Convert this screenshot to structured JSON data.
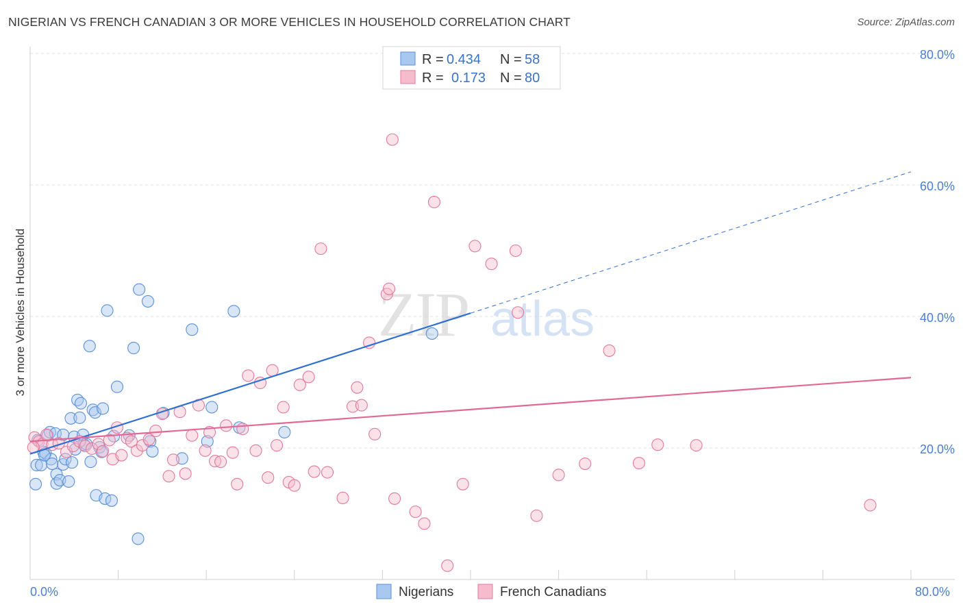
{
  "title": "NIGERIAN VS FRENCH CANADIAN 3 OR MORE VEHICLES IN HOUSEHOLD CORRELATION CHART",
  "source": "Source: ZipAtlas.com",
  "watermark": {
    "zip": "ZIP",
    "atlas": "atlas"
  },
  "chart_data": {
    "type": "scatter",
    "xlabel": "",
    "ylabel": "3 or more Vehicles in Household",
    "xlim": [
      0,
      80
    ],
    "ylim": [
      0,
      80
    ],
    "x_tick_labels": [
      "0.0%",
      "80.0%"
    ],
    "y_tick_labels": [
      "20.0%",
      "40.0%",
      "60.0%",
      "80.0%"
    ],
    "y_ticks": [
      20,
      40,
      60,
      80
    ],
    "grid": true,
    "legend_top": [
      {
        "r_label": "R =",
        "r_value": "0.434",
        "n_label": "N =",
        "n_value": "58",
        "color": "#a9c8f0",
        "stroke": "#5b8fd6"
      },
      {
        "r_label": "R =",
        "r_value": "0.173",
        "n_label": "N =",
        "n_value": "80",
        "color": "#f6bccd",
        "stroke": "#e07a9c"
      }
    ],
    "series": [
      {
        "name": "Nigerians",
        "color": "#a9c8f0",
        "stroke": "#5b8fd6",
        "line_color": "#2f6fd0",
        "trend": {
          "x0": 0,
          "y0": 19.1,
          "x1": 40,
          "y1": 40.5,
          "dash_to_x": 80,
          "dash_to_y": 62.0
        },
        "points": [
          [
            0.5,
            14.5
          ],
          [
            0.6,
            17.4
          ],
          [
            0.7,
            21.2
          ],
          [
            1.0,
            17.4
          ],
          [
            1.2,
            19.4
          ],
          [
            1.4,
            19.2
          ],
          [
            1.6,
            21.9
          ],
          [
            1.8,
            22.4
          ],
          [
            1.9,
            18.3
          ],
          [
            2.0,
            17.6
          ],
          [
            2.3,
            22.2
          ],
          [
            2.4,
            16.0
          ],
          [
            2.4,
            14.6
          ],
          [
            2.7,
            15.1
          ],
          [
            3.0,
            17.5
          ],
          [
            3.0,
            22.0
          ],
          [
            3.2,
            18.3
          ],
          [
            3.5,
            14.9
          ],
          [
            3.7,
            24.5
          ],
          [
            3.8,
            17.8
          ],
          [
            4.0,
            21.7
          ],
          [
            4.1,
            19.8
          ],
          [
            4.3,
            27.3
          ],
          [
            4.5,
            24.6
          ],
          [
            4.6,
            26.8
          ],
          [
            4.8,
            22.0
          ],
          [
            4.9,
            20.5
          ],
          [
            5.1,
            20.6
          ],
          [
            5.4,
            35.5
          ],
          [
            5.5,
            17.9
          ],
          [
            5.7,
            25.8
          ],
          [
            5.9,
            25.4
          ],
          [
            6.0,
            12.8
          ],
          [
            6.3,
            20.1
          ],
          [
            6.5,
            19.4
          ],
          [
            6.6,
            26.0
          ],
          [
            6.8,
            12.3
          ],
          [
            7.0,
            40.9
          ],
          [
            7.4,
            12.0
          ],
          [
            7.6,
            21.8
          ],
          [
            7.9,
            29.3
          ],
          [
            9.0,
            21.9
          ],
          [
            9.4,
            35.2
          ],
          [
            9.8,
            6.2
          ],
          [
            9.9,
            44.1
          ],
          [
            10.7,
            42.3
          ],
          [
            10.9,
            21.0
          ],
          [
            11.1,
            19.5
          ],
          [
            12.1,
            25.3
          ],
          [
            13.8,
            18.4
          ],
          [
            14.7,
            38.0
          ],
          [
            16.1,
            21.0
          ],
          [
            16.5,
            26.2
          ],
          [
            18.5,
            40.8
          ],
          [
            19.0,
            23.1
          ],
          [
            23.1,
            22.4
          ],
          [
            36.5,
            37.4
          ],
          [
            1.3,
            18.9
          ]
        ]
      },
      {
        "name": "French Canadians",
        "color": "#f6bccd",
        "stroke": "#e07a9c",
        "line_color": "#e06a95",
        "trend": {
          "x0": 0,
          "y0": 21.0,
          "x1": 80,
          "y1": 30.7
        },
        "points": [
          [
            0.4,
            21.6
          ],
          [
            0.8,
            21.0
          ],
          [
            1.1,
            20.6
          ],
          [
            1.5,
            22.0
          ],
          [
            2.0,
            20.5
          ],
          [
            2.6,
            20.7
          ],
          [
            3.3,
            19.4
          ],
          [
            3.9,
            20.3
          ],
          [
            4.5,
            21.0
          ],
          [
            5.0,
            20.3
          ],
          [
            5.6,
            19.9
          ],
          [
            6.2,
            20.6
          ],
          [
            6.6,
            19.5
          ],
          [
            7.2,
            21.2
          ],
          [
            7.5,
            18.3
          ],
          [
            7.9,
            23.1
          ],
          [
            8.3,
            18.9
          ],
          [
            8.8,
            21.5
          ],
          [
            9.2,
            21.0
          ],
          [
            9.7,
            19.6
          ],
          [
            10.2,
            20.4
          ],
          [
            10.8,
            21.3
          ],
          [
            11.4,
            22.6
          ],
          [
            12.0,
            25.2
          ],
          [
            12.6,
            15.7
          ],
          [
            13.0,
            18.2
          ],
          [
            13.6,
            25.5
          ],
          [
            14.1,
            16.1
          ],
          [
            14.7,
            21.9
          ],
          [
            15.3,
            26.5
          ],
          [
            15.9,
            19.6
          ],
          [
            16.3,
            22.4
          ],
          [
            16.8,
            18.0
          ],
          [
            17.3,
            17.9
          ],
          [
            17.8,
            23.4
          ],
          [
            18.4,
            19.3
          ],
          [
            18.8,
            14.5
          ],
          [
            19.3,
            22.9
          ],
          [
            19.8,
            31.0
          ],
          [
            20.5,
            19.6
          ],
          [
            20.9,
            29.9
          ],
          [
            21.6,
            15.5
          ],
          [
            22.0,
            31.8
          ],
          [
            22.4,
            20.4
          ],
          [
            23.0,
            26.2
          ],
          [
            23.5,
            14.8
          ],
          [
            24.0,
            14.3
          ],
          [
            24.5,
            29.6
          ],
          [
            25.3,
            30.8
          ],
          [
            25.8,
            16.4
          ],
          [
            26.4,
            50.3
          ],
          [
            27.0,
            16.3
          ],
          [
            28.4,
            12.4
          ],
          [
            29.3,
            26.3
          ],
          [
            29.7,
            29.2
          ],
          [
            30.1,
            26.5
          ],
          [
            30.8,
            36.0
          ],
          [
            31.3,
            22.1
          ],
          [
            32.4,
            43.4
          ],
          [
            32.6,
            44.2
          ],
          [
            32.9,
            66.9
          ],
          [
            33.1,
            12.3
          ],
          [
            35.0,
            10.3
          ],
          [
            35.8,
            8.5
          ],
          [
            36.7,
            57.4
          ],
          [
            37.9,
            2.1
          ],
          [
            39.3,
            14.5
          ],
          [
            40.4,
            50.7
          ],
          [
            41.9,
            48.0
          ],
          [
            44.1,
            50.0
          ],
          [
            44.3,
            40.6
          ],
          [
            46.0,
            9.7
          ],
          [
            48.0,
            15.9
          ],
          [
            50.4,
            17.6
          ],
          [
            52.6,
            34.8
          ],
          [
            55.3,
            17.7
          ],
          [
            57.0,
            20.5
          ],
          [
            60.5,
            20.4
          ],
          [
            76.3,
            11.3
          ],
          [
            0.3,
            20.1
          ]
        ]
      }
    ]
  }
}
